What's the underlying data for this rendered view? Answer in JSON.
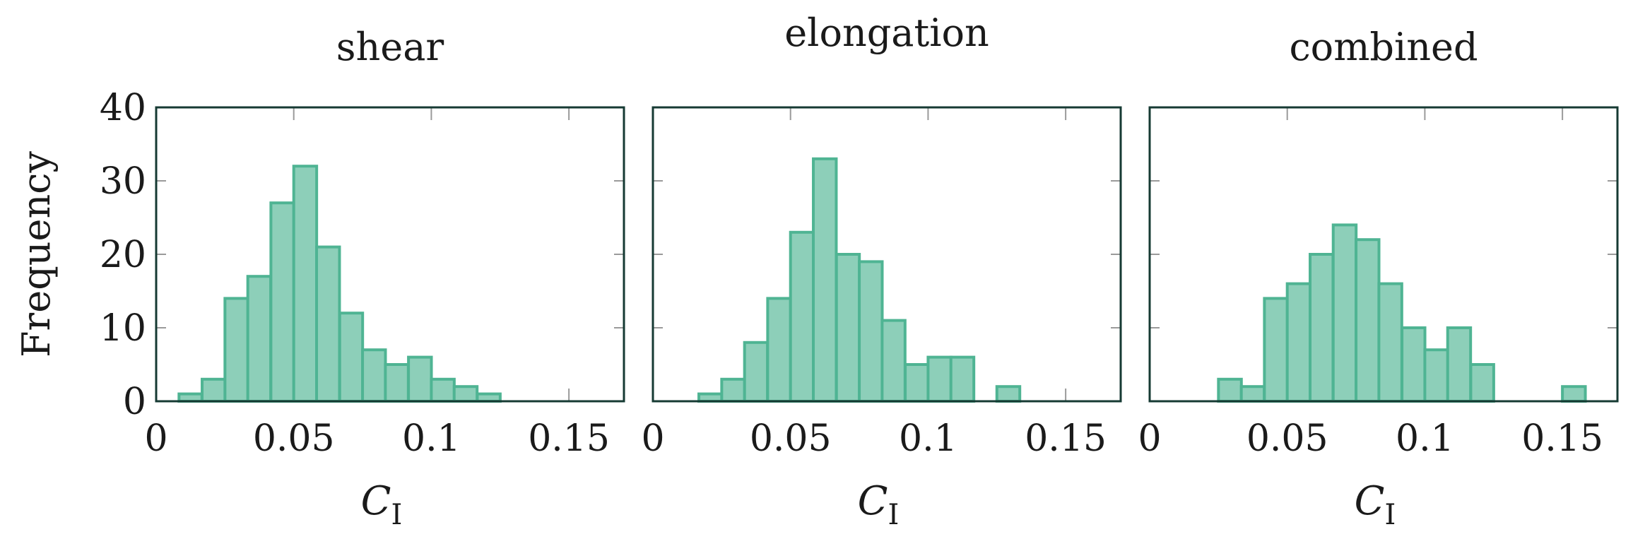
{
  "chart_data": [
    {
      "type": "bar",
      "title": "shear",
      "xlabel_main": "C",
      "xlabel_sub": "I",
      "ylabel": "Frequency",
      "xlim": [
        0,
        0.17
      ],
      "ylim": [
        0,
        40
      ],
      "bin_width": 0.00833,
      "xticks": [
        0,
        0.05,
        0.1,
        0.15
      ],
      "xtick_labels": [
        "0",
        "0.05",
        "0.1",
        "0.15"
      ],
      "yticks": [
        0,
        10,
        20,
        30,
        40
      ],
      "ytick_labels": [
        "0",
        "10",
        "20",
        "30",
        "40"
      ],
      "bins": [
        {
          "start": 0.0083,
          "count": 1
        },
        {
          "start": 0.0167,
          "count": 3
        },
        {
          "start": 0.025,
          "count": 14
        },
        {
          "start": 0.0333,
          "count": 17
        },
        {
          "start": 0.0417,
          "count": 27
        },
        {
          "start": 0.05,
          "count": 32
        },
        {
          "start": 0.0583,
          "count": 21
        },
        {
          "start": 0.0667,
          "count": 12
        },
        {
          "start": 0.075,
          "count": 7
        },
        {
          "start": 0.0833,
          "count": 5
        },
        {
          "start": 0.0917,
          "count": 6
        },
        {
          "start": 0.1,
          "count": 3
        },
        {
          "start": 0.1083,
          "count": 2
        },
        {
          "start": 0.1167,
          "count": 1
        }
      ]
    },
    {
      "type": "bar",
      "title": "elongation",
      "xlabel_main": "C",
      "xlabel_sub": "I",
      "xlim": [
        0,
        0.17
      ],
      "ylim": [
        0,
        40
      ],
      "bin_width": 0.00833,
      "xticks": [
        0,
        0.05,
        0.1,
        0.15
      ],
      "xtick_labels": [
        "0",
        "0.05",
        "0.1",
        "0.15"
      ],
      "bins": [
        {
          "start": 0.0167,
          "count": 1
        },
        {
          "start": 0.025,
          "count": 3
        },
        {
          "start": 0.0333,
          "count": 8
        },
        {
          "start": 0.0417,
          "count": 14
        },
        {
          "start": 0.05,
          "count": 23
        },
        {
          "start": 0.0583,
          "count": 33
        },
        {
          "start": 0.0667,
          "count": 20
        },
        {
          "start": 0.075,
          "count": 19
        },
        {
          "start": 0.0833,
          "count": 11
        },
        {
          "start": 0.0917,
          "count": 5
        },
        {
          "start": 0.1,
          "count": 6
        },
        {
          "start": 0.1083,
          "count": 6
        },
        {
          "start": 0.125,
          "count": 2
        }
      ]
    },
    {
      "type": "bar",
      "title": "combined",
      "xlabel_main": "C",
      "xlabel_sub": "I",
      "xlim": [
        0,
        0.17
      ],
      "ylim": [
        0,
        40
      ],
      "bin_width": 0.00833,
      "xticks": [
        0,
        0.05,
        0.1,
        0.15
      ],
      "xtick_labels": [
        "0",
        "0.05",
        "0.1",
        "0.15"
      ],
      "bins": [
        {
          "start": 0.025,
          "count": 3
        },
        {
          "start": 0.0333,
          "count": 2
        },
        {
          "start": 0.0417,
          "count": 14
        },
        {
          "start": 0.05,
          "count": 16
        },
        {
          "start": 0.0583,
          "count": 20
        },
        {
          "start": 0.0667,
          "count": 24
        },
        {
          "start": 0.075,
          "count": 22
        },
        {
          "start": 0.0833,
          "count": 16
        },
        {
          "start": 0.0917,
          "count": 10
        },
        {
          "start": 0.1,
          "count": 7
        },
        {
          "start": 0.1083,
          "count": 10
        },
        {
          "start": 0.1167,
          "count": 5
        },
        {
          "start": 0.15,
          "count": 2
        }
      ]
    }
  ],
  "colors": {
    "bar_fill": "#8dcfb9",
    "bar_edge": "#4fb493",
    "frame": "#163a33"
  }
}
